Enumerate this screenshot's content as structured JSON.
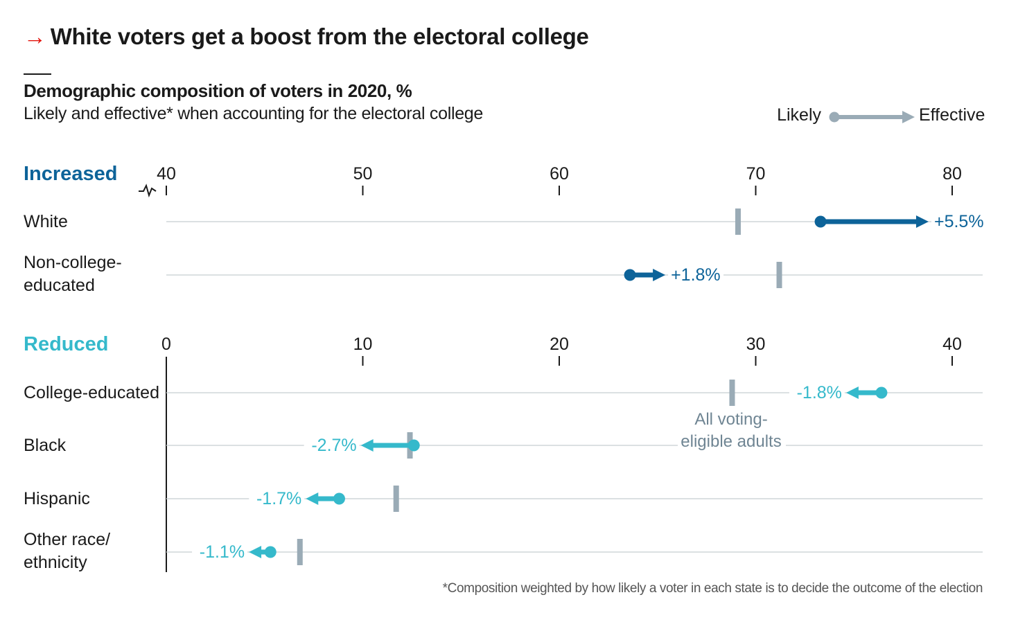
{
  "title": "White voters get a boost from the electoral college",
  "title_arrow": "→",
  "subtitle": "Demographic composition of voters in 2020, %",
  "description": "Likely and effective* when accounting for the electoral college",
  "footnote": "*Composition weighted by how likely a voter in each state is to decide the outcome of the election",
  "legend": {
    "likely": "Likely",
    "effective": "Effective"
  },
  "annotation": [
    "All voting-",
    "eligible adults"
  ],
  "colors": {
    "increased": "#0d6399",
    "reduced": "#35b9cb",
    "marker": "#9aabb6",
    "grid": "#cfd5d8"
  },
  "chart_data": [
    {
      "type": "dot-arrow",
      "panel": "Increased",
      "axis": {
        "min": 40,
        "max": 80,
        "ticks": [
          "40",
          "50",
          "60",
          "70",
          "80"
        ],
        "broken_axis": true
      },
      "rows": [
        {
          "label": [
            "White"
          ],
          "likely": 73.3,
          "effective": 78.8,
          "all_adults": 69.1,
          "change": "+5.5%"
        },
        {
          "label": [
            "Non-college-",
            "educated"
          ],
          "likely": 63.6,
          "effective": 65.4,
          "all_adults": 71.2,
          "change": "+1.8%"
        }
      ]
    },
    {
      "type": "dot-arrow",
      "panel": "Reduced",
      "axis": {
        "min": 0,
        "max": 40,
        "ticks": [
          "0",
          "10",
          "20",
          "30",
          "40"
        ]
      },
      "rows": [
        {
          "label": [
            "College-educated"
          ],
          "likely": 36.4,
          "effective": 34.6,
          "all_adults": 28.8,
          "change": "-1.8%"
        },
        {
          "label": [
            "Black"
          ],
          "likely": 12.6,
          "effective": 9.9,
          "all_adults": 12.4,
          "change": "-2.7%"
        },
        {
          "label": [
            "Hispanic"
          ],
          "likely": 8.8,
          "effective": 7.1,
          "all_adults": 11.7,
          "change": "-1.7%"
        },
        {
          "label": [
            "Other race/",
            "ethnicity"
          ],
          "likely": 5.3,
          "effective": 4.2,
          "all_adults": 6.8,
          "change": "-1.1%"
        }
      ]
    }
  ]
}
